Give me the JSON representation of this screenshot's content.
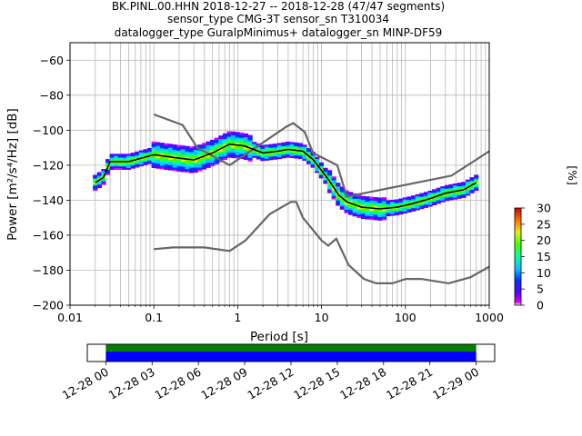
{
  "chart_data": {
    "type": "ppsd",
    "title_lines": [
      "BK.PINL.00.HHN   2018-12-27 -- 2018-12-28  (47/47 segments)",
      "sensor_type CMG-3T sensor_sn T310034",
      "datalogger_type GuralpMinimus+ datalogger_sn MINP-DF59"
    ],
    "xlabel": "Period [s]",
    "ylabel": "Power [m²/s⁴/Hz] [dB]",
    "xscale": "log",
    "xlim": [
      0.01,
      1000
    ],
    "ylim": [
      -200,
      -50
    ],
    "xticks": [
      {
        "v": 0.01,
        "label": "0.01"
      },
      {
        "v": 0.1,
        "label": "0.1"
      },
      {
        "v": 1,
        "label": "1"
      },
      {
        "v": 10,
        "label": "10"
      },
      {
        "v": 100,
        "label": "100"
      },
      {
        "v": 1000,
        "label": "1000"
      }
    ],
    "yticks": [
      {
        "v": -200,
        "label": "−200"
      },
      {
        "v": -180,
        "label": "−180"
      },
      {
        "v": -160,
        "label": "−160"
      },
      {
        "v": -140,
        "label": "−140"
      },
      {
        "v": -120,
        "label": "−120"
      },
      {
        "v": -100,
        "label": "−100"
      },
      {
        "v": -80,
        "label": "−80"
      },
      {
        "v": -60,
        "label": "−60"
      }
    ],
    "grid": true,
    "colorbar": {
      "label": "[%]",
      "range": [
        0,
        30
      ],
      "ticks": [
        {
          "v": 0,
          "label": "0"
        },
        {
          "v": 5,
          "label": "5"
        },
        {
          "v": 10,
          "label": "10"
        },
        {
          "v": 15,
          "label": "15"
        },
        {
          "v": 20,
          "label": "20"
        },
        {
          "v": 25,
          "label": "25"
        },
        {
          "v": 30,
          "label": "30"
        }
      ]
    },
    "nhnm_curve": [
      [
        0.1,
        -91
      ],
      [
        0.22,
        -97
      ],
      [
        0.33,
        -110
      ],
      [
        0.8,
        -120
      ],
      [
        3.8,
        -98
      ],
      [
        4.6,
        -96
      ],
      [
        6.3,
        -101
      ],
      [
        7.9,
        -113
      ],
      [
        15.4,
        -120
      ],
      [
        20,
        -138
      ],
      [
        354,
        -126
      ],
      [
        1000,
        -112
      ]
    ],
    "nlnm_curve": [
      [
        0.1,
        -168
      ],
      [
        0.17,
        -167
      ],
      [
        0.4,
        -167
      ],
      [
        0.8,
        -169
      ],
      [
        1.24,
        -163
      ],
      [
        2.4,
        -148
      ],
      [
        4.3,
        -141
      ],
      [
        5,
        -141
      ],
      [
        6,
        -150
      ],
      [
        10,
        -163
      ],
      [
        12,
        -166
      ],
      [
        15,
        -162
      ],
      [
        21,
        -177
      ],
      [
        32,
        -185
      ],
      [
        45,
        -187.5
      ],
      [
        70,
        -187.5
      ],
      [
        101,
        -185
      ],
      [
        154,
        -185
      ],
      [
        328,
        -187.5
      ],
      [
        600,
        -184
      ],
      [
        1000,
        -178
      ]
    ],
    "median_curve": [
      [
        0.02,
        -130
      ],
      [
        0.025,
        -127
      ],
      [
        0.03,
        -118
      ],
      [
        0.05,
        -118
      ],
      [
        0.1,
        -114
      ],
      [
        0.2,
        -116
      ],
      [
        0.3,
        -117
      ],
      [
        0.5,
        -113
      ],
      [
        0.8,
        -108
      ],
      [
        1.2,
        -109
      ],
      [
        2,
        -113
      ],
      [
        3,
        -112
      ],
      [
        4,
        -111
      ],
      [
        6,
        -112
      ],
      [
        8,
        -117
      ],
      [
        12,
        -128
      ],
      [
        16,
        -137
      ],
      [
        20,
        -141
      ],
      [
        30,
        -144
      ],
      [
        50,
        -145
      ],
      [
        80,
        -144
      ],
      [
        120,
        -142
      ],
      [
        200,
        -139
      ],
      [
        300,
        -136
      ],
      [
        500,
        -134
      ],
      [
        700,
        -130
      ]
    ],
    "timeline": {
      "ticks": [
        {
          "v": 0,
          "label": "12-28 00"
        },
        {
          "v": 3,
          "label": "12-28 03"
        },
        {
          "v": 6,
          "label": "12-28 06"
        },
        {
          "v": 9,
          "label": "12-28 09"
        },
        {
          "v": 12,
          "label": "12-28 12"
        },
        {
          "v": 15,
          "label": "12-28 15"
        },
        {
          "v": 18,
          "label": "12-28 18"
        },
        {
          "v": 21,
          "label": "12-28 21"
        },
        {
          "v": 24,
          "label": "12-29 00"
        }
      ],
      "range_hours": [
        -1.2,
        25.2
      ],
      "coverage_hours": [
        0,
        24
      ]
    }
  }
}
